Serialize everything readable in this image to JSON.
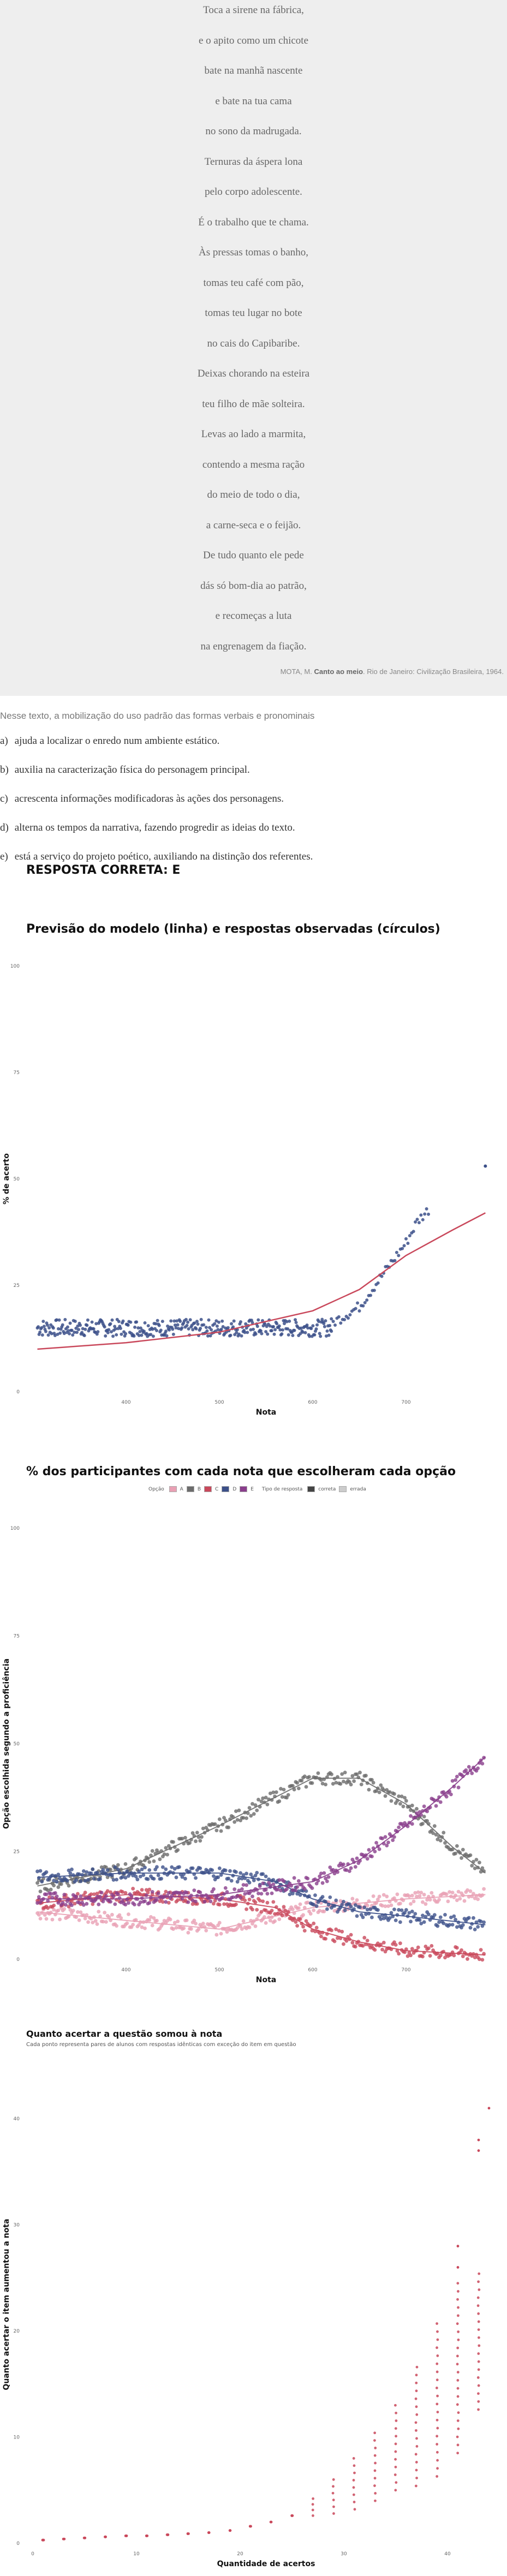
{
  "poem": {
    "lines": [
      "Toca a sirene na fábrica,",
      "e o apito como um chicote",
      "bate na manhã nascente",
      "e bate na tua cama",
      "no sono da madrugada.",
      "Ternuras da áspera lona",
      "pelo corpo adolescente.",
      "É o trabalho que te chama.",
      "Às pressas tomas o banho,",
      "tomas teu café com pão,",
      "tomas teu lugar no bote",
      "no cais do Capibaribe.",
      "Deixas chorando na esteira",
      "teu filho de mãe solteira.",
      "Levas ao lado a marmita,",
      "contendo a mesma ração",
      "do meio de todo o dia,",
      "a carne-seca e o feijão.",
      "De tudo quanto ele pede",
      "dás só bom-dia ao patrão,",
      "e recomeças a luta",
      "na engrenagem da fiação."
    ],
    "source_author": "MOTA, M.",
    "source_title": "Canto ao meio",
    "source_rest": ". Rio de Janeiro: Civilização Brasileira, 1964."
  },
  "question": {
    "stem": "Nesse texto, a mobilização do uso padrão das formas verbais e pronominais",
    "alternatives": [
      {
        "letter": "a)",
        "text": "ajuda a localizar o enredo num ambiente estático."
      },
      {
        "letter": "b)",
        "text": "auxilia na caracterização física do personagem principal."
      },
      {
        "letter": "c)",
        "text": "acrescenta informações modificadoras às ações dos personagens."
      },
      {
        "letter": "d)",
        "text": "alterna os tempos da narrativa, fazendo progredir as ideias do texto."
      },
      {
        "letter": "e)",
        "text": "está a serviço do projeto poético, auxiliando na distinção dos referentes."
      }
    ],
    "answer": "RESPOSTA CORRETA: E"
  },
  "chart_data": [
    {
      "type": "scatter",
      "title": "Previsão do modelo (linha) e respostas observadas (círculos)",
      "xlabel": "Nota",
      "ylabel": "% de acerto",
      "xlim": [
        300,
        800
      ],
      "ylim": [
        0,
        100
      ],
      "yticks": [
        "0",
        "25",
        "50",
        "75",
        "100"
      ],
      "xticks": [
        "400",
        "500",
        "600",
        "700"
      ],
      "observed_band": {
        "x_start": 305,
        "x_end": 620,
        "y_center": 15,
        "y_spread": 2
      },
      "observed_rise": [
        [
          620,
          16
        ],
        [
          650,
          20
        ],
        [
          680,
          29
        ],
        [
          700,
          35
        ],
        [
          712,
          40
        ],
        [
          725,
          43
        ]
      ],
      "outlier": [
        785,
        53
      ],
      "model_curve": [
        [
          305,
          10
        ],
        [
          400,
          11.5
        ],
        [
          500,
          14
        ],
        [
          600,
          19
        ],
        [
          650,
          24
        ],
        [
          700,
          32
        ],
        [
          750,
          38
        ],
        [
          785,
          42
        ]
      ]
    },
    {
      "type": "scatter",
      "title": "% dos participantes com cada nota que escolheram cada opção",
      "xlabel": "Nota",
      "ylabel": "Opção escolhida segundo a proficiência",
      "xlim": [
        300,
        800
      ],
      "ylim": [
        0,
        100
      ],
      "yticks": [
        "0",
        "25",
        "50",
        "75",
        "100"
      ],
      "xticks": [
        "400",
        "500",
        "600",
        "700"
      ],
      "legend": {
        "option_label": "Opção",
        "options": [
          {
            "name": "A",
            "color": "#e9a0b4"
          },
          {
            "name": "B",
            "color": "#6c6c6c"
          },
          {
            "name": "C",
            "color": "#c9485b"
          },
          {
            "name": "D",
            "color": "#3c5089"
          },
          {
            "name": "E",
            "color": "#8a3e8c"
          }
        ],
        "type_label": "Tipo de resposta",
        "types": [
          "correta",
          "errada"
        ]
      },
      "series": [
        {
          "name": "A",
          "points": [
            [
              305,
              11
            ],
            [
              400,
              9
            ],
            [
              500,
              7
            ],
            [
              600,
              12
            ],
            [
              700,
              14
            ],
            [
              785,
              15
            ]
          ]
        },
        {
          "name": "B",
          "points": [
            [
              305,
              17
            ],
            [
              400,
              21
            ],
            [
              500,
              31
            ],
            [
              600,
              42
            ],
            [
              650,
              42
            ],
            [
              700,
              36
            ],
            [
              750,
              26
            ],
            [
              785,
              20
            ]
          ]
        },
        {
          "name": "C",
          "points": [
            [
              305,
              13
            ],
            [
              400,
              15
            ],
            [
              500,
              14
            ],
            [
              560,
              12
            ],
            [
              600,
              7
            ],
            [
              650,
              4
            ],
            [
              700,
              2
            ],
            [
              785,
              1
            ]
          ]
        },
        {
          "name": "D",
          "points": [
            [
              305,
              19
            ],
            [
              400,
              20
            ],
            [
              500,
              20
            ],
            [
              560,
              18
            ],
            [
              600,
              14
            ],
            [
              650,
              11
            ],
            [
              700,
              10
            ],
            [
              785,
              8
            ]
          ]
        },
        {
          "name": "E",
          "points": [
            [
              305,
              14
            ],
            [
              400,
              14
            ],
            [
              500,
              15
            ],
            [
              600,
              18
            ],
            [
              650,
              23
            ],
            [
              700,
              31
            ],
            [
              750,
              40
            ],
            [
              785,
              47
            ]
          ]
        }
      ]
    },
    {
      "type": "scatter",
      "title": "Quanto acertar a questão somou à nota",
      "subtitle": "Cada ponto representa pares de alunos com respostas idênticas com exceção do item em questão",
      "xlabel": "Quantidade de acertos",
      "ylabel": "Quanto acertar o item aumentou a nota",
      "xlim": [
        0,
        45
      ],
      "ylim": [
        0,
        70
      ],
      "yticks": [
        "0",
        "10",
        "20",
        "30",
        "40"
      ],
      "xticks": [
        "0",
        "10",
        "20",
        "30",
        "40"
      ],
      "ylim_scale": [
        0,
        45
      ],
      "mean_per_count": [
        [
          1,
          0.3
        ],
        [
          3,
          0.4
        ],
        [
          5,
          0.5
        ],
        [
          7,
          0.6
        ],
        [
          9,
          0.7
        ],
        [
          11,
          0.7
        ],
        [
          13,
          0.8
        ],
        [
          15,
          0.9
        ],
        [
          17,
          1.0
        ],
        [
          19,
          1.2
        ],
        [
          21,
          1.6
        ],
        [
          23,
          2.0
        ],
        [
          25,
          2.6
        ],
        [
          27,
          3.4
        ],
        [
          29,
          4.4
        ],
        [
          31,
          5.6
        ],
        [
          33,
          7.2
        ],
        [
          35,
          9.0
        ],
        [
          37,
          11.0
        ],
        [
          39,
          13.5
        ],
        [
          41,
          16.5
        ],
        [
          43,
          19.0
        ]
      ],
      "spread_per_count": [
        [
          27,
          1
        ],
        [
          29,
          2
        ],
        [
          31,
          3
        ],
        [
          33,
          4
        ],
        [
          35,
          5
        ],
        [
          37,
          7
        ],
        [
          39,
          9
        ],
        [
          41,
          10
        ],
        [
          43,
          8
        ]
      ],
      "outliers": [
        [
          44,
          41
        ],
        [
          43,
          38
        ],
        [
          43,
          37
        ],
        [
          41,
          28
        ],
        [
          41,
          26
        ]
      ]
    }
  ]
}
